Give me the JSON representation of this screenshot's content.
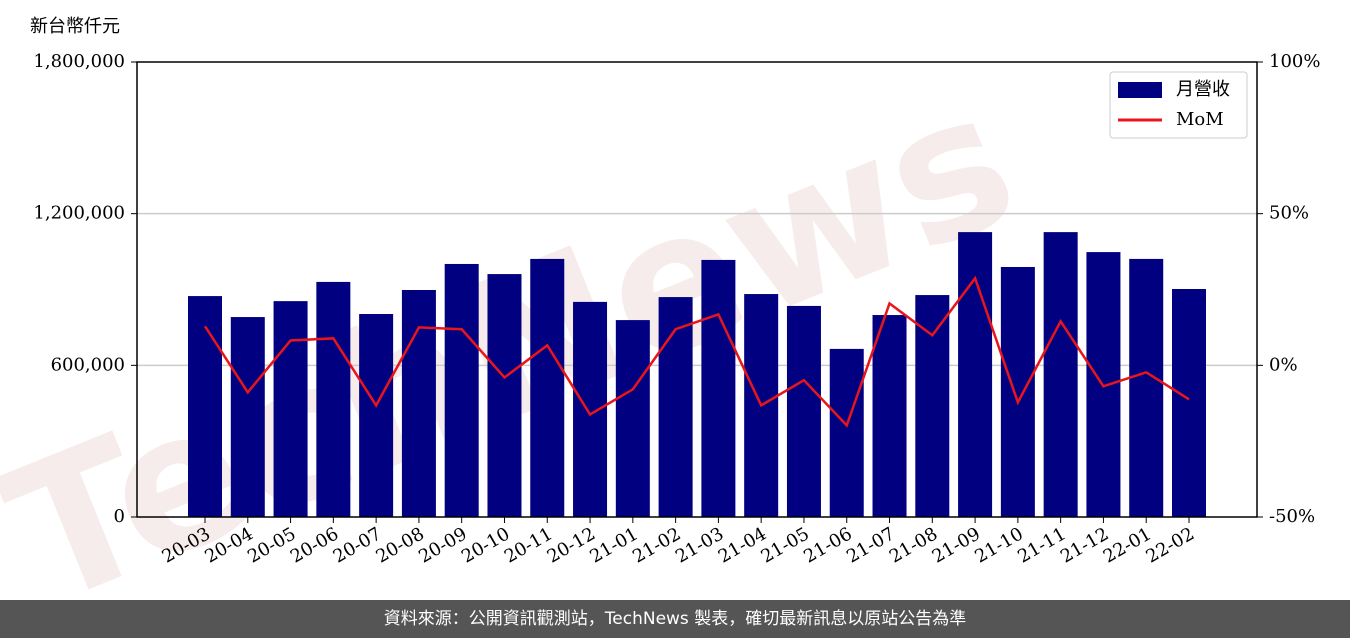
{
  "chart_data": {
    "type": "bar",
    "y_label": "新台幣仟元",
    "watermark": "TechNews",
    "source": "資料來源：公開資訊觀測站，TechNews 製表，確切最新訊息以原站公告為準",
    "categories": [
      "20-03",
      "20-04",
      "20-05",
      "20-06",
      "20-07",
      "20-08",
      "20-09",
      "20-10",
      "20-11",
      "20-12",
      "21-01",
      "21-02",
      "21-03",
      "21-04",
      "21-05",
      "21-06",
      "21-07",
      "21-08",
      "21-09",
      "21-10",
      "21-11",
      "21-12",
      "22-01",
      "22-02"
    ],
    "series": [
      {
        "name": "月營收",
        "color": "#000080",
        "values": [
          874000,
          791000,
          854000,
          930000,
          803000,
          898000,
          1001000,
          961000,
          1021000,
          851000,
          779000,
          870000,
          1017000,
          882000,
          835000,
          665000,
          799000,
          878000,
          1127000,
          989000,
          1127000,
          1048000,
          1021000,
          902000
        ]
      },
      {
        "name": "MoM",
        "color": "#e8151b",
        "axis": "y2",
        "type": "line",
        "values": [
          12.9,
          -8.9,
          8.2,
          8.9,
          -13.2,
          12.5,
          11.9,
          -4.0,
          6.6,
          -16.2,
          -7.9,
          11.9,
          16.8,
          -13.2,
          -4.9,
          -19.8,
          20.4,
          9.9,
          28.7,
          -12.2,
          14.5,
          -6.9,
          -2.3,
          -11.2
        ]
      }
    ],
    "ylim": [
      0,
      1800000
    ],
    "yticks": [
      0,
      {
        "value": 600000,
        "label": "600,000"
      },
      {
        "value": 1200000,
        "label": "1,200,000"
      },
      {
        "value": 1800000,
        "label": "1,800,000"
      }
    ],
    "y2lim": [
      -50,
      100
    ],
    "y2ticks": [
      {
        "value": -50,
        "label": "-50%"
      },
      {
        "value": 0,
        "label": "0%"
      },
      {
        "value": 50,
        "label": "50%"
      },
      {
        "value": 100,
        "label": "100%"
      }
    ],
    "grid": true,
    "legend": "upper right"
  }
}
